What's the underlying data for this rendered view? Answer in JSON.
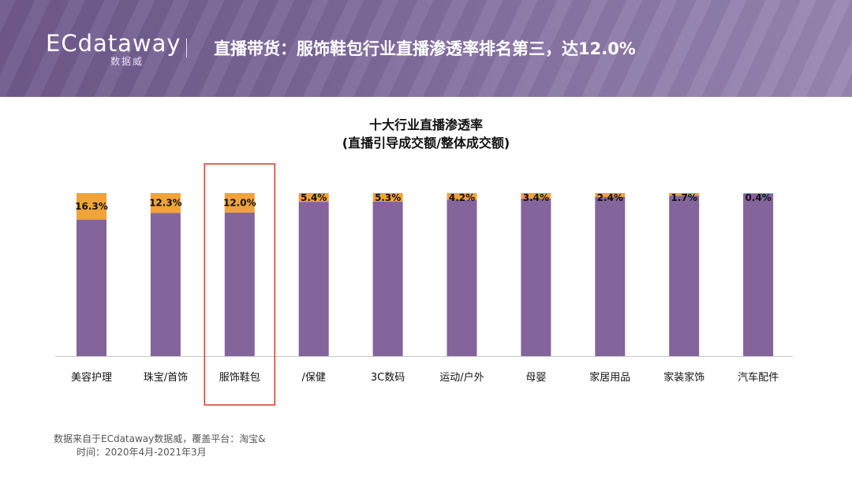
{
  "header": {
    "logo_text": "ECdataway",
    "logo_sub": "数据威",
    "title": "直播带货：服饰鞋包行业直播渗透率排名第三，达12.0%"
  },
  "chart_data": {
    "type": "bar",
    "title": "十大行业直播渗透率",
    "subtitle": "(直播引导成交额/整体成交额)",
    "categories": [
      "美容护理",
      "珠宝/首饰",
      "服饰鞋包",
      "/保健",
      "3C数码",
      "运动/户外",
      "母婴",
      "家居用品",
      "家装家饰",
      "汽车配件"
    ],
    "series": [
      {
        "values": [
          16.3,
          12.3,
          12.0,
          5.4,
          5.3,
          4.2,
          3.4,
          2.4,
          1.7,
          0.4
        ]
      }
    ],
    "value_labels": [
      "16.3%",
      "12.3%",
      "12.0%",
      "5.4%",
      "5.3%",
      "4.2%",
      "3.4%",
      "2.4%",
      "1.7%",
      "0.4%"
    ],
    "highlighted_category": "服饰鞋包",
    "stacked_full_height": true,
    "ylim": [
      0,
      100
    ],
    "grid": false,
    "colors": {
      "penetration": "#f0a33a",
      "remainder": "#83649b",
      "highlight_box": "#e0322a",
      "axis": "#c8c8c8"
    }
  },
  "footnote": {
    "line1": "数据来自于ECdataway数据威，覆盖平台：淘宝&",
    "line2": "时间：2020年4月-2021年3月"
  }
}
